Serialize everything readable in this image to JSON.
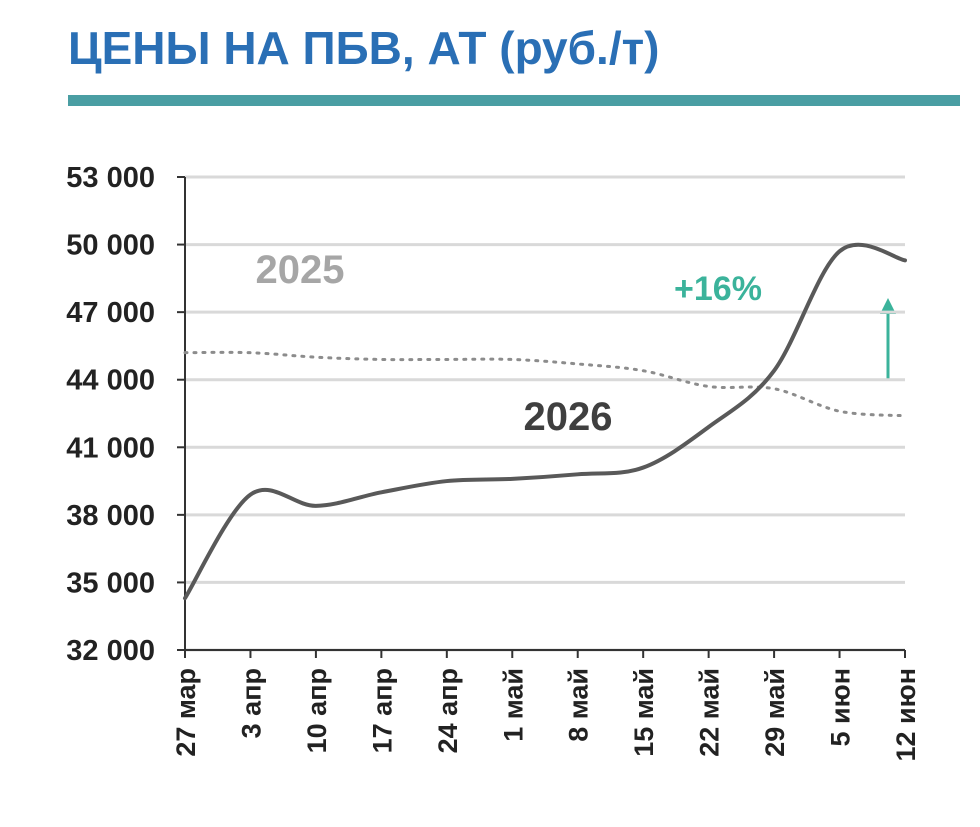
{
  "chart_data": {
    "type": "line",
    "title": "ЦЕНЫ НА ПБВ, АТ (руб./т)",
    "categories": [
      "27 мар",
      "3 апр",
      "10 апр",
      "17 апр",
      "24 апр",
      "1 май",
      "8 май",
      "15 май",
      "22 май",
      "29 май",
      "5 июн",
      "12 июн"
    ],
    "series": [
      {
        "name": "2025",
        "color": "#8c8c8c",
        "style": "dotted",
        "values": [
          45200,
          45200,
          45000,
          44900,
          44900,
          44900,
          44700,
          44400,
          43700,
          43600,
          42600,
          42400
        ]
      },
      {
        "name": "2026",
        "color": "#595959",
        "style": "solid",
        "values": [
          34300,
          38900,
          38400,
          39000,
          39500,
          39600,
          39800,
          40100,
          41900,
          44400,
          49700,
          49300
        ]
      }
    ],
    "annotation": "+16%",
    "ylim": [
      32000,
      53000
    ],
    "yticks": [
      {
        "value": 32000,
        "label": "32 000"
      },
      {
        "value": 35000,
        "label": "35 000"
      },
      {
        "value": 38000,
        "label": "38 000"
      },
      {
        "value": 41000,
        "label": "41 000"
      },
      {
        "value": 44000,
        "label": "44 000"
      },
      {
        "value": 47000,
        "label": "47 000"
      },
      {
        "value": 50000,
        "label": "50 000"
      },
      {
        "value": 53000,
        "label": "53 000"
      }
    ],
    "grid": true
  }
}
